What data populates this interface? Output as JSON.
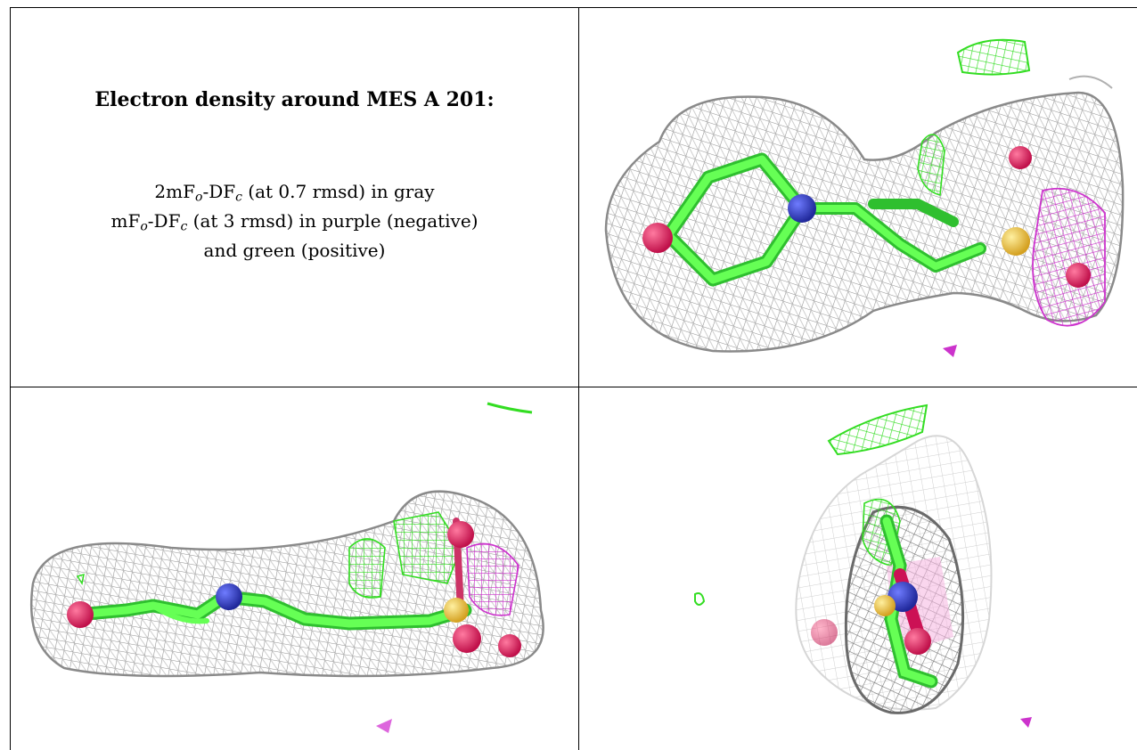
{
  "caption": {
    "title": "Electron density around MES A 201:",
    "line1": {
      "a": "2mF",
      "o": "o",
      "b": "-DF",
      "c": "c",
      "rest": " (at 0.7 rmsd) in gray"
    },
    "line2": {
      "a": "mF",
      "o": "o",
      "b": "-DF",
      "c": "c",
      "rest": " (at 3 rmsd) in purple (negative)"
    },
    "line3": "and green (positive)"
  },
  "colors": {
    "map_2fofc": "#9a9a9a",
    "map_negative": "#cc33cc",
    "map_positive": "#33dd22",
    "carbon": "#44ee44",
    "nitrogen": "#3344cc",
    "oxygen": "#ee2266",
    "sulfur": "#eec030"
  },
  "panels": [
    {
      "view": "top"
    },
    {
      "view": "side"
    },
    {
      "view": "end-on"
    }
  ]
}
